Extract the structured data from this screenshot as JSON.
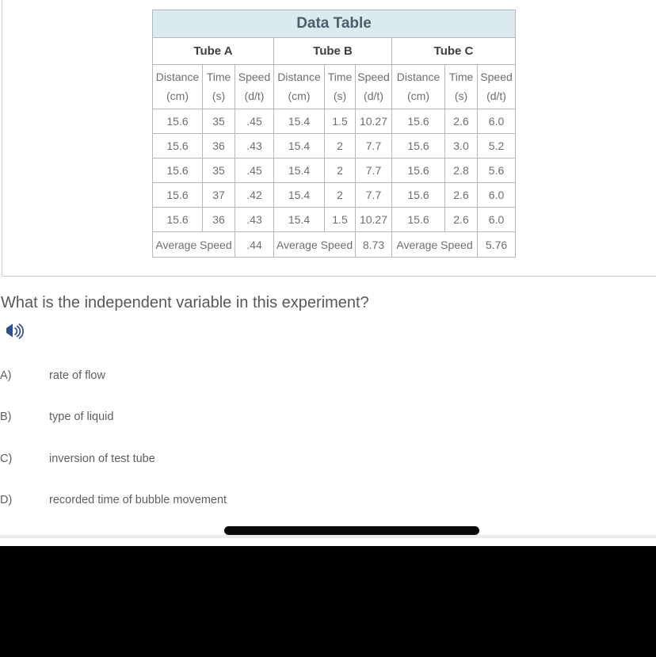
{
  "data_table": {
    "title": "Data Table",
    "tube_groups": [
      "Tube A",
      "Tube B",
      "Tube C"
    ],
    "sub_columns": [
      {
        "line1": "Distance",
        "line2": "(cm)"
      },
      {
        "line1": "Time",
        "line2": "(s)"
      },
      {
        "line1": "Speed",
        "line2": "(d/t)"
      }
    ],
    "rows": [
      [
        "15.6",
        "35",
        ".45",
        "15.4",
        "1.5",
        "10.27",
        "15.6",
        "2.6",
        "6.0"
      ],
      [
        "15.6",
        "36",
        ".43",
        "15.4",
        "2",
        "7.7",
        "15.6",
        "3.0",
        "5.2"
      ],
      [
        "15.6",
        "35",
        ".45",
        "15.4",
        "2",
        "7.7",
        "15.6",
        "2.8",
        "5.6"
      ],
      [
        "15.6",
        "37",
        ".42",
        "15.4",
        "2",
        "7.7",
        "15.6",
        "2.6",
        "6.0"
      ],
      [
        "15.6",
        "36",
        ".43",
        "15.4",
        "1.5",
        "10.27",
        "15.6",
        "2.6",
        "6.0"
      ]
    ],
    "average_row": {
      "label": "Average Speed",
      "values": [
        ".44",
        "8.73",
        "5.76"
      ]
    }
  },
  "question": {
    "text": "What is the independent variable in this experiment?"
  },
  "options": [
    {
      "letter": "A)",
      "text": "rate of flow"
    },
    {
      "letter": "B)",
      "text": "type of liquid"
    },
    {
      "letter": "C)",
      "text": "inversion of test tube"
    },
    {
      "letter": "D)",
      "text": "recorded time of bubble movement"
    }
  ],
  "icons": {
    "speaker": "speaker-audio-icon"
  },
  "colors": {
    "table_title_bg": "#d9ebee",
    "table_title_text": "#4a5f6b",
    "table_border": "#b5b8ba",
    "table_text": "#6e6e6e",
    "question_text": "#57585a",
    "speaker_icon": "#2f4f8f",
    "scroll_pill": "#0a0a0a",
    "letterbox": "#000000"
  }
}
